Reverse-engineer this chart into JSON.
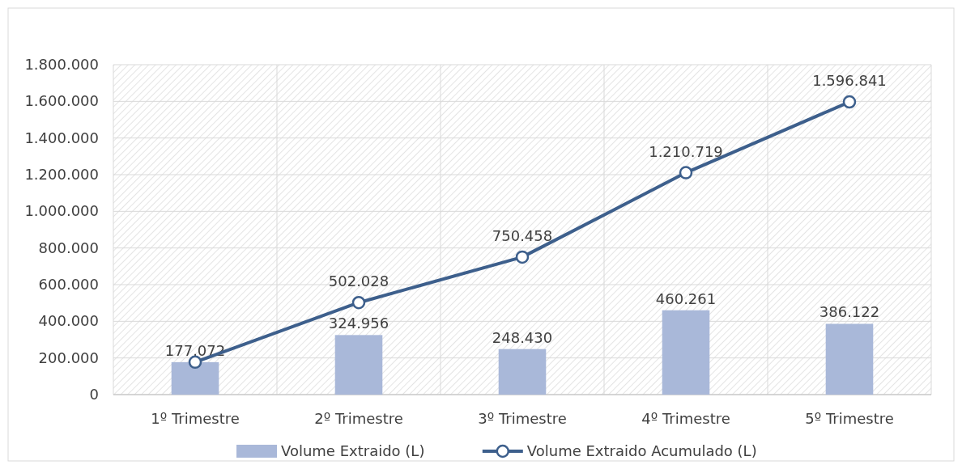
{
  "chart_data": {
    "type": "bar",
    "categories": [
      "1º Trimestre",
      "2º Trimestre",
      "3º Trimestre",
      "4º Trimestre",
      "5º Trimestre"
    ],
    "series": [
      {
        "name": "Volume Extraido (L)",
        "color": "#a9b8d9",
        "values": [
          177072,
          324956,
          248430,
          460261,
          386122
        ],
        "value_labels": [
          "177.072",
          "324.956",
          "248.430",
          "460.261",
          "386.122"
        ]
      },
      {
        "name": "Volume Extraido Acumulado (L)",
        "type": "line",
        "color": "#3d5f8c",
        "values": [
          177072,
          502028,
          750458,
          1210719,
          1596841
        ],
        "value_labels": [
          null,
          "502.028",
          "750.458",
          "1.210.719",
          "1.596.841"
        ],
        "marker": "circle"
      }
    ],
    "ylim": [
      0,
      1800000
    ],
    "yticks": [
      0,
      {
        "value": 200000,
        "label": "200.000"
      },
      {
        "value": 400000,
        "label": "400.000"
      },
      {
        "value": 600000,
        "label": "600.000"
      },
      {
        "value": 800000,
        "label": "800.000"
      },
      {
        "value": 1000000,
        "label": "1.000.000"
      },
      {
        "value": 1200000,
        "label": "1.200.000"
      },
      {
        "value": 1400000,
        "label": "1.400.000"
      },
      {
        "value": 1600000,
        "label": "1.600.000"
      },
      {
        "value": 1800000,
        "label": "1.800.000"
      }
    ],
    "grid": true,
    "legend": "bottom"
  }
}
